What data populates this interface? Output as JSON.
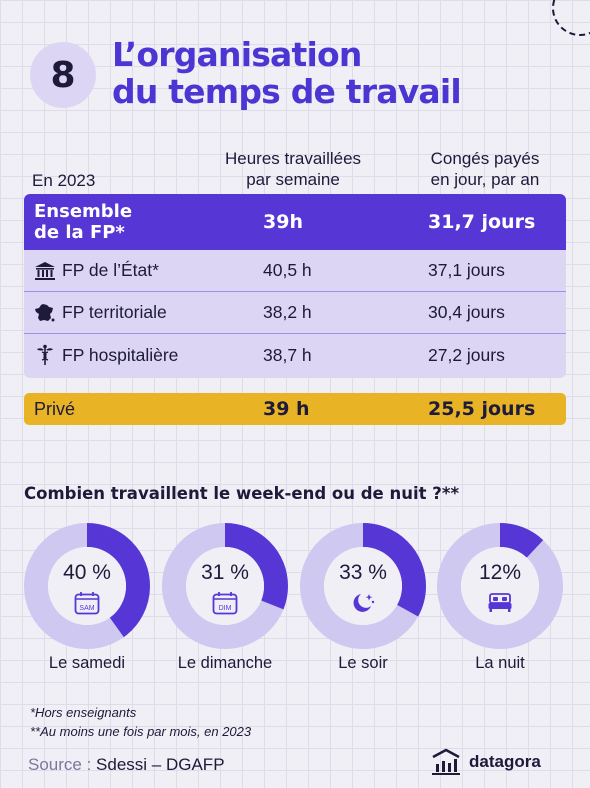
{
  "header": {
    "number": "8",
    "title_line1": "L’organisation",
    "title_line2": "du temps de travail"
  },
  "table": {
    "year_label": "En 2023",
    "col1_header_line1": "Heures travaillées",
    "col1_header_line2": "par semaine",
    "col2_header_line1": "Congés payés",
    "col2_header_line2": "en jour, par an",
    "total": {
      "label_line1": "Ensemble",
      "label_line2": "de la FP*",
      "hours": "39h",
      "leave": "31,7 jours"
    },
    "rows": [
      {
        "label": "FP de l’État*",
        "hours": "40,5 h",
        "leave": "37,1 jours",
        "icon": "government-building-icon"
      },
      {
        "label": "FP territoriale",
        "hours": "38,2 h",
        "leave": "30,4 jours",
        "icon": "france-map-icon"
      },
      {
        "label": "FP hospitalière",
        "hours": "38,7 h",
        "leave": "27,2 jours",
        "icon": "caduceus-icon"
      }
    ],
    "private": {
      "label": "Privé",
      "hours": "39 h",
      "leave": "25,5 jours"
    }
  },
  "weekend": {
    "title": "Combien travaillent le week-end ou de nuit ?**",
    "items": [
      {
        "pct_label": "40 %",
        "value": 40,
        "caption": "Le samedi",
        "icon": "calendar-sam-icon",
        "icon_text": "SAM"
      },
      {
        "pct_label": "31 %",
        "value": 31,
        "caption": "Le dimanche",
        "icon": "calendar-dim-icon",
        "icon_text": "DIM"
      },
      {
        "pct_label": "33 %",
        "value": 33,
        "caption": "Le soir",
        "icon": "moon-stars-icon"
      },
      {
        "pct_label": "12%",
        "value": 12,
        "caption": "La nuit",
        "icon": "bed-icon"
      }
    ],
    "colors": {
      "fill": "#5637d6",
      "track": "#cfc8f0",
      "hole": "#f1eff6"
    }
  },
  "footnotes": {
    "note1": "*Hors enseignants",
    "note2": "**Au moins une fois par mois, en 2023"
  },
  "source": {
    "label": "Source :",
    "value": "Sdessi – DGAFP"
  },
  "brand": {
    "name": "datagora"
  }
}
